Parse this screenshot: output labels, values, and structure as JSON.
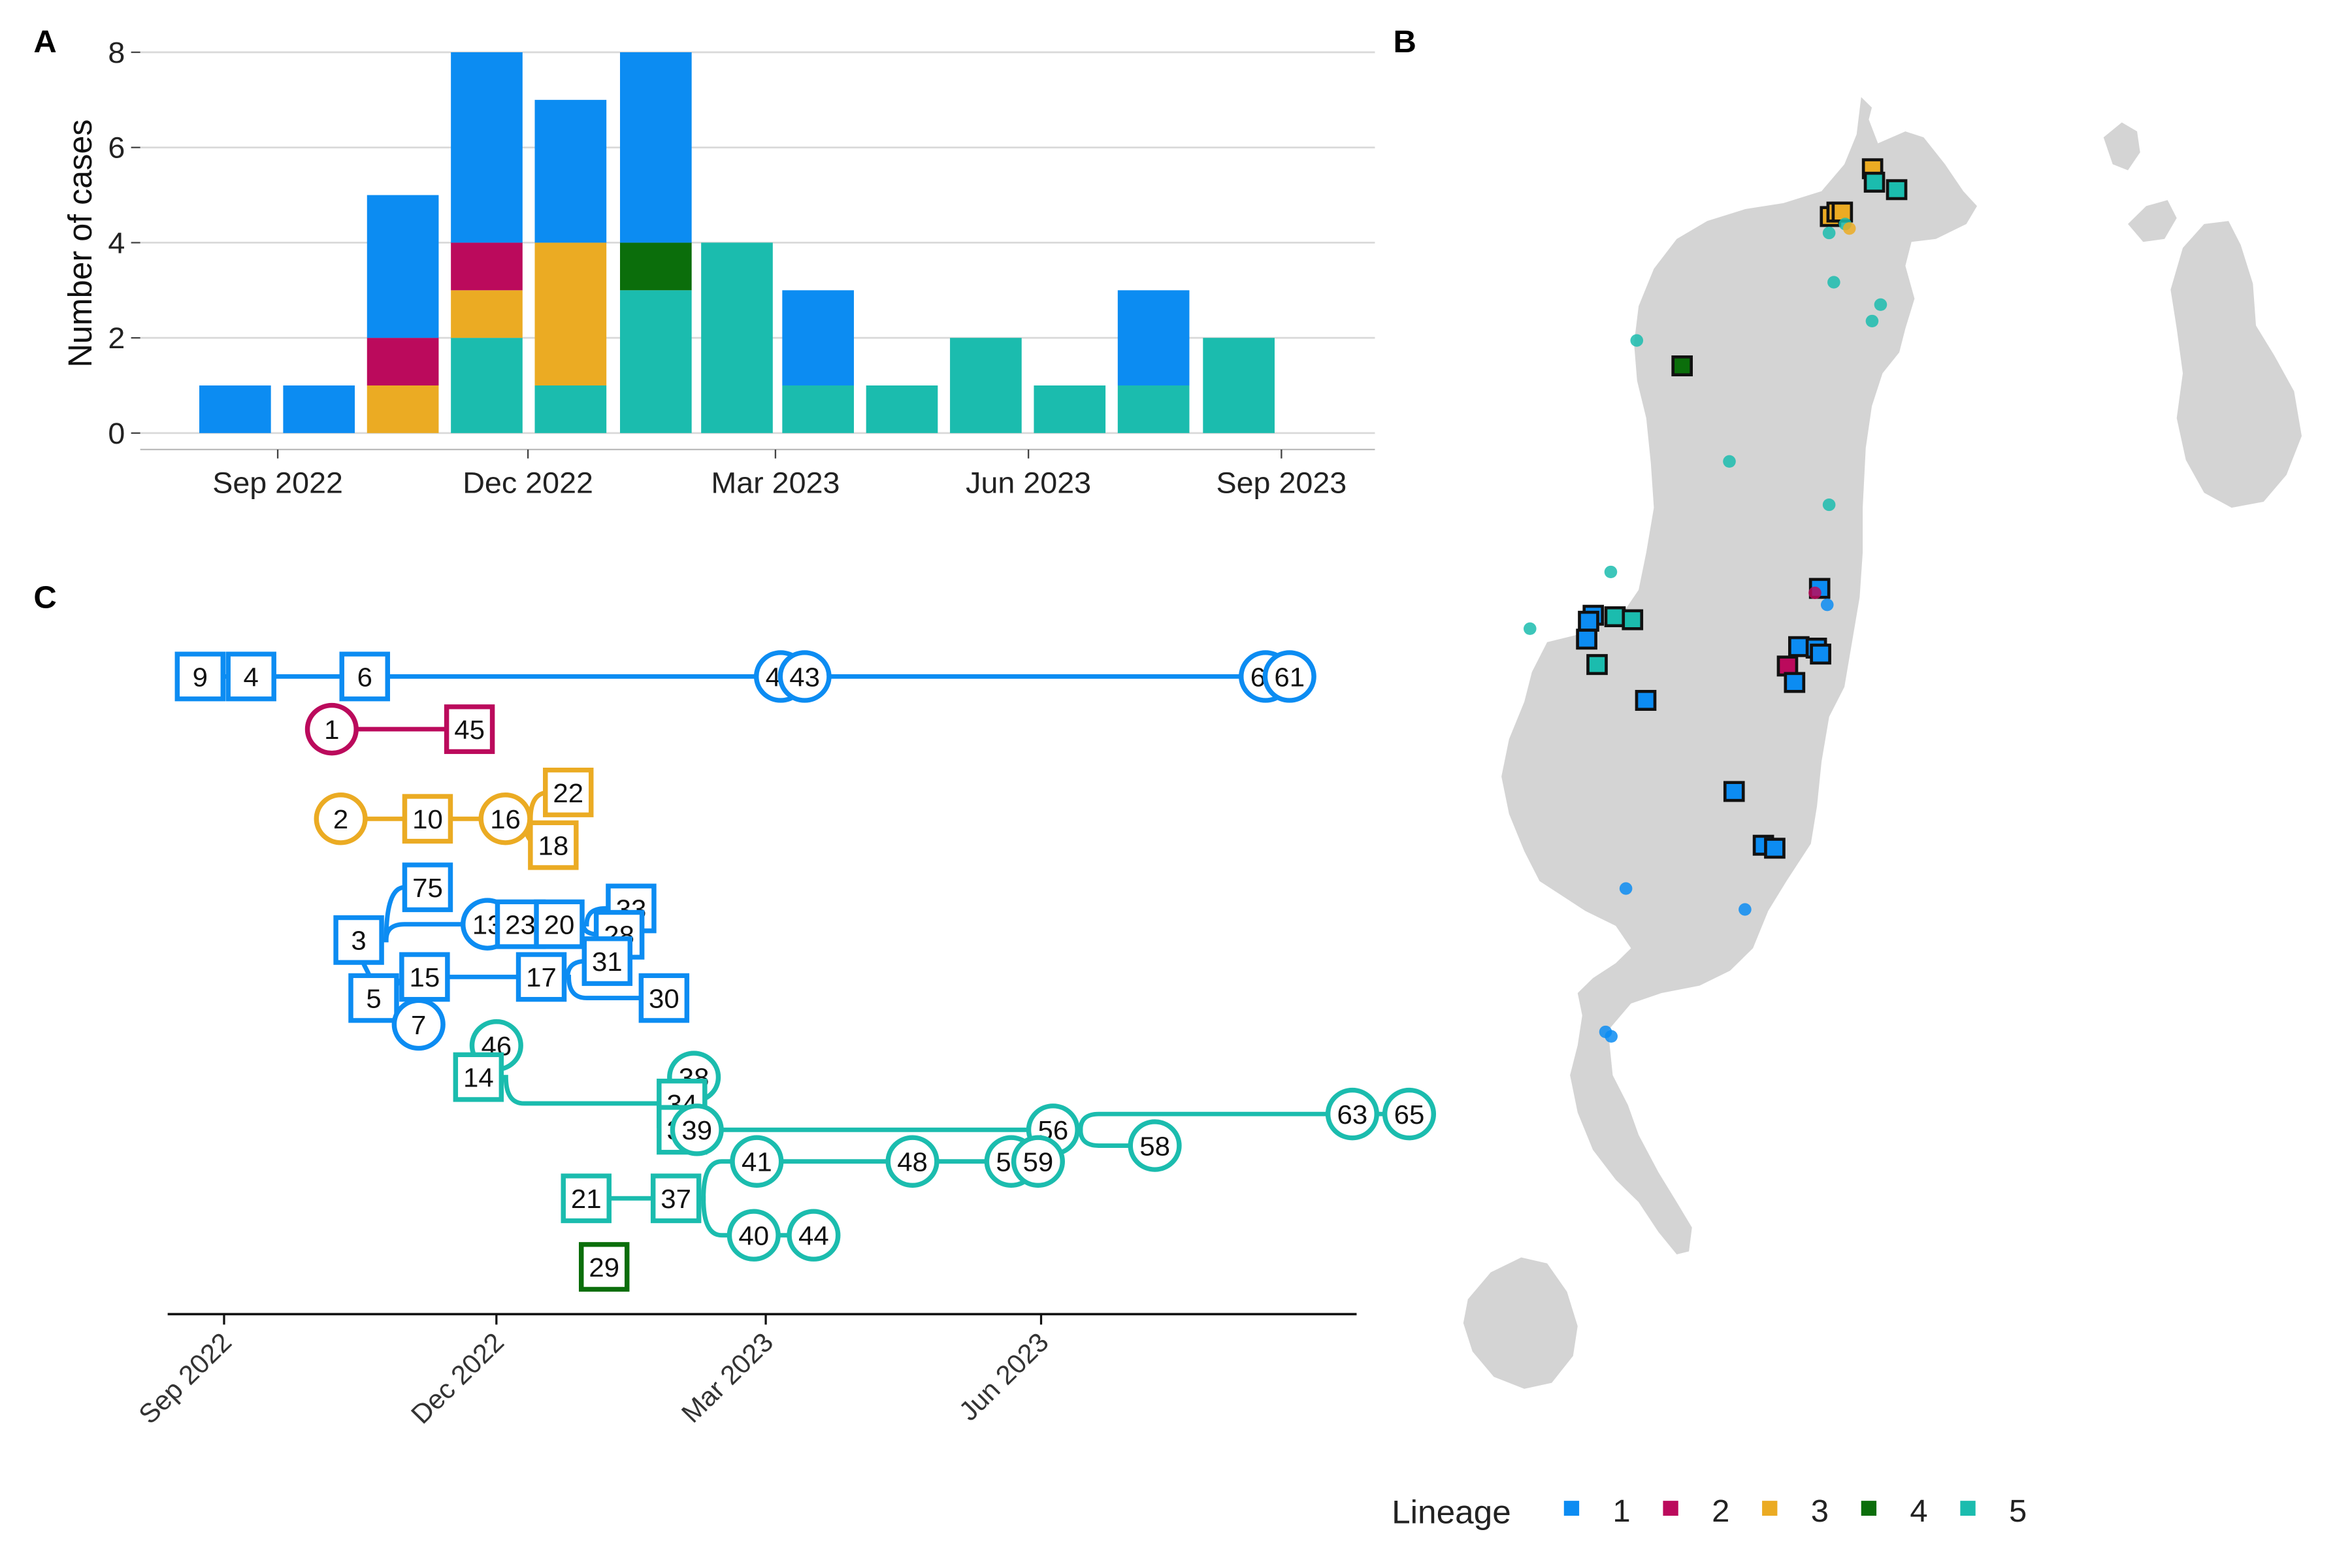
{
  "colors": {
    "lineage_1": "#0c8cf2",
    "lineage_2": "#bb0a5c",
    "lineage_3": "#ebab23",
    "lineage_4": "#0b6e0b",
    "lineage_5": "#1bbcae",
    "map_land": "#d4d4d4",
    "grid": "#d9d9d9"
  },
  "panels": {
    "a": "A",
    "b": "B",
    "c": "C"
  },
  "legend": {
    "title": "Lineage",
    "items": [
      {
        "label": "1",
        "color": "#0c8cf2"
      },
      {
        "label": "2",
        "color": "#bb0a5c"
      },
      {
        "label": "3",
        "color": "#ebab23"
      },
      {
        "label": "4",
        "color": "#0b6e0b"
      },
      {
        "label": "5",
        "color": "#1bbcae"
      }
    ]
  },
  "chart_data": [
    {
      "panel": "A",
      "type": "bar",
      "stacked": true,
      "ylabel": "Number of cases",
      "xlabel": "",
      "ylim": [
        0,
        8
      ],
      "yticks": [
        "0",
        "2",
        "4",
        "6",
        "8"
      ],
      "grid": true,
      "xticks": [
        "Sep 2022",
        "Dec 2022",
        "Mar 2023",
        "Jun 2023",
        "Sep 2023"
      ],
      "categories": [
        "2022-08",
        "2022-09",
        "2022-10",
        "2022-11",
        "2022-12",
        "2023-01",
        "2023-02",
        "2023-03",
        "2023-04",
        "2023-05",
        "2023-06",
        "2023-07",
        "2023-08"
      ],
      "series": [
        {
          "name": "5",
          "values": [
            0,
            0,
            0,
            2,
            1,
            3,
            4,
            1,
            1,
            2,
            1,
            1,
            2
          ]
        },
        {
          "name": "4",
          "values": [
            0,
            0,
            0,
            0,
            0,
            1,
            0,
            0,
            0,
            0,
            0,
            0,
            0
          ]
        },
        {
          "name": "3",
          "values": [
            0,
            0,
            1,
            1,
            3,
            0,
            0,
            0,
            0,
            0,
            0,
            0,
            0
          ]
        },
        {
          "name": "2",
          "values": [
            0,
            0,
            1,
            1,
            0,
            0,
            0,
            0,
            0,
            0,
            0,
            0,
            0
          ]
        },
        {
          "name": "1",
          "values": [
            1,
            1,
            3,
            4,
            3,
            4,
            0,
            2,
            0,
            0,
            0,
            2,
            0
          ]
        }
      ]
    },
    {
      "panel": "C",
      "type": "scatter",
      "title": "",
      "xticks": [
        "Sep 2022",
        "Dec 2022",
        "Mar 2023",
        "Jun 2023"
      ],
      "xrange": [
        "2022-08-15",
        "2023-11-25"
      ],
      "nodes": [
        {
          "id": "9",
          "lineage": 1,
          "shape": "square",
          "date": "2022-08-24",
          "row": 0
        },
        {
          "id": "4",
          "lineage": 1,
          "shape": "square",
          "date": "2022-09-10",
          "row": 0
        },
        {
          "id": "6",
          "lineage": 1,
          "shape": "square",
          "date": "2022-10-18",
          "row": 0
        },
        {
          "id": "42",
          "lineage": 1,
          "shape": "circle",
          "date": "2023-03-06",
          "row": 0
        },
        {
          "id": "43",
          "lineage": 1,
          "shape": "circle",
          "date": "2023-03-14",
          "row": 0
        },
        {
          "id": "62",
          "lineage": 1,
          "shape": "circle",
          "date": "2023-08-15",
          "row": 0
        },
        {
          "id": "61",
          "lineage": 1,
          "shape": "circle",
          "date": "2023-08-23",
          "row": 0
        },
        {
          "id": "1",
          "lineage": 2,
          "shape": "circle",
          "date": "2022-10-07",
          "row": 1
        },
        {
          "id": "45",
          "lineage": 2,
          "shape": "square",
          "date": "2022-11-22",
          "row": 1
        },
        {
          "id": "2",
          "lineage": 3,
          "shape": "circle",
          "date": "2022-10-10",
          "row": 2.7
        },
        {
          "id": "10",
          "lineage": 3,
          "shape": "square",
          "date": "2022-11-08",
          "row": 2.7
        },
        {
          "id": "16",
          "lineage": 3,
          "shape": "circle",
          "date": "2022-12-04",
          "row": 2.7
        },
        {
          "id": "22",
          "lineage": 3,
          "shape": "square",
          "date": "2022-12-25",
          "row": 2.2
        },
        {
          "id": "18",
          "lineage": 3,
          "shape": "square",
          "date": "2022-12-20",
          "row": 3.2
        },
        {
          "id": "75",
          "lineage": 1,
          "shape": "square",
          "date": "2022-11-08",
          "row": 4.0
        },
        {
          "id": "3",
          "lineage": 1,
          "shape": "square",
          "date": "2022-10-16",
          "row": 5.0
        },
        {
          "id": "13",
          "lineage": 1,
          "shape": "circle",
          "date": "2022-11-28",
          "row": 4.7
        },
        {
          "id": "23",
          "lineage": 1,
          "shape": "square",
          "date": "2022-12-09",
          "row": 4.7
        },
        {
          "id": "20",
          "lineage": 1,
          "shape": "square",
          "date": "2022-12-22",
          "row": 4.7
        },
        {
          "id": "33",
          "lineage": 1,
          "shape": "square",
          "date": "2023-01-15",
          "row": 4.4
        },
        {
          "id": "28",
          "lineage": 1,
          "shape": "square",
          "date": "2023-01-11",
          "row": 4.9
        },
        {
          "id": "31",
          "lineage": 1,
          "shape": "square",
          "date": "2023-01-07",
          "row": 5.4
        },
        {
          "id": "15",
          "lineage": 1,
          "shape": "square",
          "date": "2022-11-07",
          "row": 5.7
        },
        {
          "id": "17",
          "lineage": 1,
          "shape": "square",
          "date": "2022-12-16",
          "row": 5.7
        },
        {
          "id": "30",
          "lineage": 1,
          "shape": "square",
          "date": "2023-01-26",
          "row": 6.1
        },
        {
          "id": "5",
          "lineage": 1,
          "shape": "square",
          "date": "2022-10-21",
          "row": 6.1
        },
        {
          "id": "7",
          "lineage": 1,
          "shape": "circle",
          "date": "2022-11-05",
          "row": 6.6
        },
        {
          "id": "46",
          "lineage": 5,
          "shape": "circle",
          "date": "2022-12-01",
          "row": 7.0
        },
        {
          "id": "14",
          "lineage": 5,
          "shape": "square",
          "date": "2022-11-25",
          "row": 7.6
        },
        {
          "id": "38",
          "lineage": 5,
          "shape": "circle",
          "date": "2023-02-05",
          "row": 7.6
        },
        {
          "id": "34",
          "lineage": 5,
          "shape": "square",
          "date": "2023-02-01",
          "row": 8.1
        },
        {
          "id": "35",
          "lineage": 5,
          "shape": "square",
          "date": "2023-02-01",
          "row": 8.6
        },
        {
          "id": "39",
          "lineage": 5,
          "shape": "circle",
          "date": "2023-02-06",
          "row": 8.6
        },
        {
          "id": "56",
          "lineage": 5,
          "shape": "circle",
          "date": "2023-06-05",
          "row": 8.6
        },
        {
          "id": "63",
          "lineage": 5,
          "shape": "circle",
          "date": "2023-09-13",
          "row": 8.3
        },
        {
          "id": "65",
          "lineage": 5,
          "shape": "circle",
          "date": "2023-10-02",
          "row": 8.3
        },
        {
          "id": "58",
          "lineage": 5,
          "shape": "circle",
          "date": "2023-07-09",
          "row": 8.9
        },
        {
          "id": "41",
          "lineage": 5,
          "shape": "circle",
          "date": "2023-02-26",
          "row": 9.2
        },
        {
          "id": "48",
          "lineage": 5,
          "shape": "circle",
          "date": "2023-04-19",
          "row": 9.2
        },
        {
          "id": "55",
          "lineage": 5,
          "shape": "circle",
          "date": "2023-05-22",
          "row": 9.2
        },
        {
          "id": "59",
          "lineage": 5,
          "shape": "circle",
          "date": "2023-05-31",
          "row": 9.2
        },
        {
          "id": "21",
          "lineage": 5,
          "shape": "square",
          "date": "2022-12-31",
          "row": 9.9
        },
        {
          "id": "37",
          "lineage": 5,
          "shape": "square",
          "date": "2023-01-30",
          "row": 9.9
        },
        {
          "id": "40",
          "lineage": 5,
          "shape": "circle",
          "date": "2023-02-25",
          "row": 10.6
        },
        {
          "id": "44",
          "lineage": 5,
          "shape": "circle",
          "date": "2023-03-17",
          "row": 10.6
        },
        {
          "id": "29",
          "lineage": 4,
          "shape": "square",
          "date": "2023-01-06",
          "row": 11.2
        }
      ],
      "edges": [
        [
          "9",
          "4"
        ],
        [
          "4",
          "6"
        ],
        [
          "6",
          "42"
        ],
        [
          "42",
          "43"
        ],
        [
          "43",
          "62"
        ],
        [
          "62",
          "61"
        ],
        [
          "1",
          "45"
        ],
        [
          "2",
          "10"
        ],
        [
          "10",
          "16"
        ],
        [
          "16",
          "22"
        ],
        [
          "16",
          "18"
        ],
        [
          "3",
          "75"
        ],
        [
          "3",
          "13"
        ],
        [
          "13",
          "23"
        ],
        [
          "23",
          "20"
        ],
        [
          "20",
          "33"
        ],
        [
          "20",
          "28"
        ],
        [
          "3",
          "5"
        ],
        [
          "5",
          "15"
        ],
        [
          "15",
          "17"
        ],
        [
          "17",
          "31"
        ],
        [
          "17",
          "30"
        ],
        [
          "5",
          "7"
        ],
        [
          "14",
          "34"
        ],
        [
          "34",
          "38"
        ],
        [
          "34",
          "35"
        ],
        [
          "35",
          "39"
        ],
        [
          "39",
          "56"
        ],
        [
          "56",
          "63"
        ],
        [
          "63",
          "65"
        ],
        [
          "56",
          "58"
        ],
        [
          "21",
          "37"
        ],
        [
          "37",
          "41"
        ],
        [
          "41",
          "48"
        ],
        [
          "48",
          "55"
        ],
        [
          "55",
          "59"
        ],
        [
          "37",
          "40"
        ],
        [
          "40",
          "44"
        ]
      ]
    }
  ],
  "map": {
    "panel": "B",
    "markers": [
      {
        "lineage": 3,
        "shape": "square",
        "lon": 0.737,
        "lat": 0.113
      },
      {
        "lineage": 5,
        "shape": "square",
        "lon": 0.741,
        "lat": 0.122
      },
      {
        "lineage": 5,
        "shape": "square",
        "lon": 0.788,
        "lat": 0.127
      },
      {
        "lineage": 3,
        "shape": "square",
        "lon": 0.648,
        "lat": 0.145
      },
      {
        "lineage": 3,
        "shape": "square",
        "lon": 0.662,
        "lat": 0.142
      },
      {
        "lineage": 3,
        "shape": "square",
        "lon": 0.673,
        "lat": 0.142
      },
      {
        "lineage": 4,
        "shape": "square",
        "lon": 0.334,
        "lat": 0.245
      },
      {
        "lineage": 1,
        "shape": "square",
        "lon": 0.625,
        "lat": 0.394
      },
      {
        "lineage": 1,
        "shape": "square",
        "lon": 0.146,
        "lat": 0.412
      },
      {
        "lineage": 1,
        "shape": "square",
        "lon": 0.136,
        "lat": 0.416
      },
      {
        "lineage": 5,
        "shape": "square",
        "lon": 0.192,
        "lat": 0.413
      },
      {
        "lineage": 5,
        "shape": "square",
        "lon": 0.229,
        "lat": 0.415
      },
      {
        "lineage": 1,
        "shape": "square",
        "lon": 0.132,
        "lat": 0.428
      },
      {
        "lineage": 1,
        "shape": "square",
        "lon": 0.581,
        "lat": 0.433
      },
      {
        "lineage": 1,
        "shape": "square",
        "lon": 0.618,
        "lat": 0.434
      },
      {
        "lineage": 1,
        "shape": "square",
        "lon": 0.627,
        "lat": 0.438
      },
      {
        "lineage": 2,
        "shape": "square",
        "lon": 0.557,
        "lat": 0.446
      },
      {
        "lineage": 5,
        "shape": "square",
        "lon": 0.154,
        "lat": 0.445
      },
      {
        "lineage": 1,
        "shape": "square",
        "lon": 0.572,
        "lat": 0.457
      },
      {
        "lineage": 1,
        "shape": "square",
        "lon": 0.257,
        "lat": 0.469
      },
      {
        "lineage": 1,
        "shape": "square",
        "lon": 0.444,
        "lat": 0.53
      },
      {
        "lineage": 1,
        "shape": "square",
        "lon": 0.506,
        "lat": 0.566
      },
      {
        "lineage": 1,
        "shape": "square",
        "lon": 0.53,
        "lat": 0.568
      },
      {
        "lineage": 5,
        "shape": "dot",
        "lon": 0.645,
        "lat": 0.156
      },
      {
        "lineage": 5,
        "shape": "dot",
        "lon": 0.679,
        "lat": 0.15
      },
      {
        "lineage": 3,
        "shape": "dot",
        "lon": 0.688,
        "lat": 0.153
      },
      {
        "lineage": 5,
        "shape": "dot",
        "lon": 0.655,
        "lat": 0.189
      },
      {
        "lineage": 5,
        "shape": "dot",
        "lon": 0.754,
        "lat": 0.204
      },
      {
        "lineage": 5,
        "shape": "dot",
        "lon": 0.736,
        "lat": 0.215
      },
      {
        "lineage": 5,
        "shape": "dot",
        "lon": 0.238,
        "lat": 0.228
      },
      {
        "lineage": 5,
        "shape": "dot",
        "lon": 0.434,
        "lat": 0.309
      },
      {
        "lineage": 5,
        "shape": "dot",
        "lon": 0.645,
        "lat": 0.338
      },
      {
        "lineage": 5,
        "shape": "dot",
        "lon": 0.183,
        "lat": 0.383
      },
      {
        "lineage": 2,
        "shape": "dot",
        "lon": 0.615,
        "lat": 0.397
      },
      {
        "lineage": 1,
        "shape": "dot",
        "lon": 0.641,
        "lat": 0.405
      },
      {
        "lineage": 5,
        "shape": "dot",
        "lon": 0.012,
        "lat": 0.421
      },
      {
        "lineage": 1,
        "shape": "dot",
        "lon": 0.215,
        "lat": 0.595
      },
      {
        "lineage": 1,
        "shape": "dot",
        "lon": 0.467,
        "lat": 0.609
      },
      {
        "lineage": 1,
        "shape": "dot",
        "lon": 0.172,
        "lat": 0.691
      },
      {
        "lineage": 1,
        "shape": "dot",
        "lon": 0.184,
        "lat": 0.694
      }
    ]
  }
}
